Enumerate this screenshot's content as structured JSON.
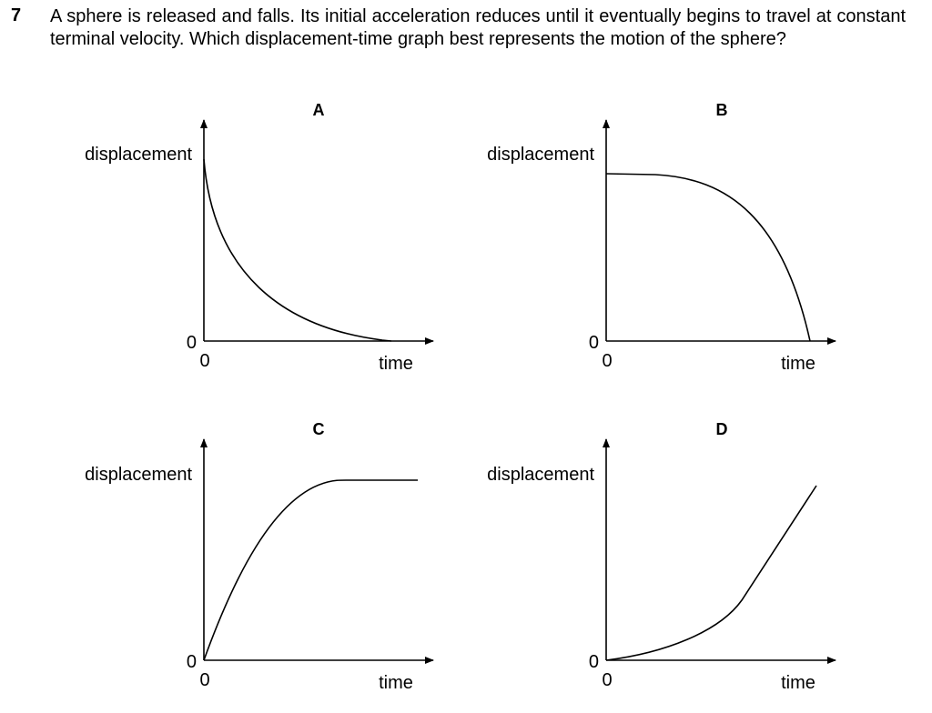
{
  "question": {
    "number": "7",
    "text": "A sphere is released and falls. Its initial acceleration reduces until it eventually begins to travel at constant terminal velocity. Which displacement-time graph best represents the motion of the sphere?"
  },
  "options": [
    {
      "letter": "A",
      "ylabel": "displacement",
      "xlabel": "time",
      "y_origin": "0",
      "x_origin": "0",
      "curve": "exponential-decay-from-top"
    },
    {
      "letter": "B",
      "ylabel": "displacement",
      "xlabel": "time",
      "y_origin": "0",
      "x_origin": "0",
      "curve": "accelerating-drop-from-top"
    },
    {
      "letter": "C",
      "ylabel": "displacement",
      "xlabel": "time",
      "y_origin": "0",
      "x_origin": "0",
      "curve": "rise-then-flat"
    },
    {
      "letter": "D",
      "ylabel": "displacement",
      "xlabel": "time",
      "y_origin": "0",
      "x_origin": "0",
      "curve": "curve-up-then-straight"
    }
  ]
}
